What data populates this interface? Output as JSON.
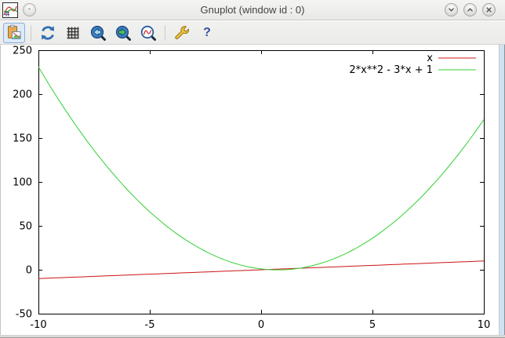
{
  "window": {
    "title": "Gnuplot (window id : 0)",
    "app_icon": "gnuplot-plot-icon",
    "buttons": [
      {
        "name": "window-menu"
      },
      {
        "name": "minimize"
      },
      {
        "name": "maximize"
      },
      {
        "name": "close"
      }
    ]
  },
  "toolbar": {
    "buttons": [
      {
        "name": "copy-to-clipboard",
        "icon": "clipboard-image-icon",
        "active": true
      },
      {
        "name": "replot",
        "icon": "refresh-icon",
        "active": false
      },
      {
        "name": "toggle-grid",
        "icon": "grid-icon",
        "active": false
      },
      {
        "name": "zoom-previous",
        "icon": "zoom-previous-icon",
        "active": false
      },
      {
        "name": "zoom-next",
        "icon": "zoom-next-icon",
        "active": false
      },
      {
        "name": "unzoom",
        "icon": "unzoom-icon",
        "active": false
      },
      {
        "name": "settings",
        "icon": "wrench-icon",
        "active": false
      },
      {
        "name": "help",
        "icon": "help-icon",
        "active": false,
        "glyph": "?"
      }
    ]
  },
  "chart_data": {
    "type": "line",
    "title": "",
    "xlabel": "",
    "ylabel": "",
    "x_range": [
      -10,
      10
    ],
    "y_range": [
      -50,
      250
    ],
    "x_ticks": [
      -10,
      -5,
      0,
      5,
      10
    ],
    "y_ticks": [
      -50,
      0,
      50,
      100,
      150,
      200,
      250
    ],
    "grid": false,
    "legend_position": "top-right",
    "series": [
      {
        "name": "x",
        "color": "#cc1414",
        "poly_coeffs": [
          0,
          1
        ]
      },
      {
        "name": "2*x**2 - 3*x + 1",
        "color": "#33d033",
        "poly_coeffs": [
          1,
          -3,
          2
        ]
      }
    ]
  },
  "colors": {
    "plot_border": "#000000",
    "titlebar_bg": "#efefed",
    "toolbar_bg": "#f1f1ef",
    "active_button_bg": "#ddeaf8",
    "frame_right": "#cfe2f4"
  }
}
